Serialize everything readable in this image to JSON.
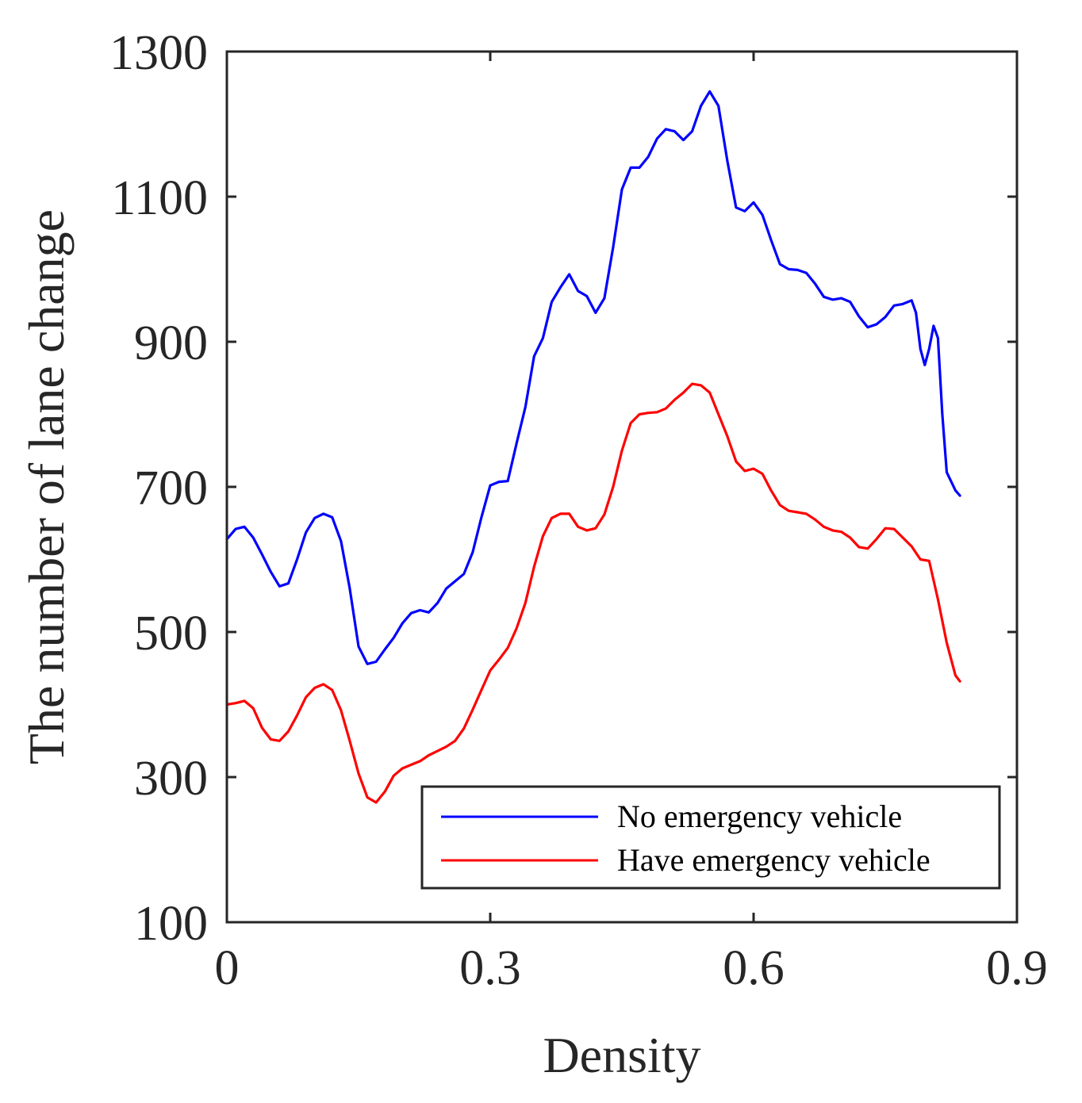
{
  "chart_data": {
    "type": "line",
    "title": "",
    "xlabel": "Density",
    "ylabel": "The number of lane change",
    "xlim": [
      0,
      0.9
    ],
    "ylim": [
      100,
      1300
    ],
    "xticks": [
      0,
      0.3,
      0.6,
      0.9
    ],
    "xtick_labels": [
      "0",
      "0.3",
      "0.6",
      "0.9"
    ],
    "yticks": [
      100,
      300,
      500,
      700,
      900,
      1100,
      1300
    ],
    "ytick_labels": [
      "100",
      "300",
      "500",
      "700",
      "900",
      "1100",
      "1300"
    ],
    "grid": false,
    "legend_position": "bottom-right",
    "series": [
      {
        "name": "No emergency vehicle",
        "color": "#0000ff",
        "points": [
          [
            0.0,
            628
          ],
          [
            0.01,
            642
          ],
          [
            0.02,
            645
          ],
          [
            0.03,
            630
          ],
          [
            0.04,
            607
          ],
          [
            0.05,
            583
          ],
          [
            0.06,
            563
          ],
          [
            0.07,
            567
          ],
          [
            0.08,
            600
          ],
          [
            0.09,
            637
          ],
          [
            0.1,
            657
          ],
          [
            0.11,
            663
          ],
          [
            0.12,
            658
          ],
          [
            0.13,
            625
          ],
          [
            0.14,
            560
          ],
          [
            0.15,
            480
          ],
          [
            0.16,
            456
          ],
          [
            0.17,
            459
          ],
          [
            0.18,
            476
          ],
          [
            0.19,
            492
          ],
          [
            0.2,
            512
          ],
          [
            0.21,
            526
          ],
          [
            0.22,
            530
          ],
          [
            0.23,
            527
          ],
          [
            0.24,
            540
          ],
          [
            0.25,
            560
          ],
          [
            0.26,
            570
          ],
          [
            0.27,
            580
          ],
          [
            0.28,
            610
          ],
          [
            0.29,
            658
          ],
          [
            0.3,
            702
          ],
          [
            0.31,
            707
          ],
          [
            0.32,
            708
          ],
          [
            0.33,
            760
          ],
          [
            0.34,
            810
          ],
          [
            0.35,
            880
          ],
          [
            0.36,
            905
          ],
          [
            0.37,
            955
          ],
          [
            0.38,
            975
          ],
          [
            0.39,
            993
          ],
          [
            0.4,
            970
          ],
          [
            0.41,
            963
          ],
          [
            0.42,
            940
          ],
          [
            0.43,
            960
          ],
          [
            0.44,
            1030
          ],
          [
            0.45,
            1110
          ],
          [
            0.46,
            1140
          ],
          [
            0.47,
            1140
          ],
          [
            0.48,
            1155
          ],
          [
            0.49,
            1180
          ],
          [
            0.5,
            1193
          ],
          [
            0.51,
            1190
          ],
          [
            0.52,
            1178
          ],
          [
            0.53,
            1190
          ],
          [
            0.54,
            1225
          ],
          [
            0.55,
            1245
          ],
          [
            0.56,
            1225
          ],
          [
            0.57,
            1150
          ],
          [
            0.58,
            1085
          ],
          [
            0.59,
            1080
          ],
          [
            0.6,
            1092
          ],
          [
            0.61,
            1075
          ],
          [
            0.62,
            1040
          ],
          [
            0.63,
            1007
          ],
          [
            0.64,
            1000
          ],
          [
            0.65,
            999
          ],
          [
            0.66,
            995
          ],
          [
            0.67,
            980
          ],
          [
            0.68,
            962
          ],
          [
            0.69,
            958
          ],
          [
            0.7,
            960
          ],
          [
            0.71,
            955
          ],
          [
            0.72,
            935
          ],
          [
            0.73,
            920
          ],
          [
            0.74,
            924
          ],
          [
            0.75,
            934
          ],
          [
            0.76,
            950
          ],
          [
            0.77,
            952
          ],
          [
            0.78,
            957
          ],
          [
            0.785,
            940
          ],
          [
            0.79,
            890
          ],
          [
            0.795,
            868
          ],
          [
            0.8,
            890
          ],
          [
            0.805,
            922
          ],
          [
            0.81,
            905
          ],
          [
            0.815,
            800
          ],
          [
            0.82,
            720
          ],
          [
            0.83,
            695
          ],
          [
            0.835,
            688
          ]
        ]
      },
      {
        "name": "Have emergency vehicle",
        "color": "#ff0000",
        "points": [
          [
            0.0,
            400
          ],
          [
            0.01,
            402
          ],
          [
            0.02,
            405
          ],
          [
            0.03,
            395
          ],
          [
            0.04,
            368
          ],
          [
            0.05,
            352
          ],
          [
            0.06,
            350
          ],
          [
            0.07,
            363
          ],
          [
            0.08,
            385
          ],
          [
            0.09,
            410
          ],
          [
            0.1,
            423
          ],
          [
            0.11,
            428
          ],
          [
            0.12,
            420
          ],
          [
            0.13,
            392
          ],
          [
            0.14,
            350
          ],
          [
            0.15,
            305
          ],
          [
            0.16,
            272
          ],
          [
            0.17,
            265
          ],
          [
            0.18,
            280
          ],
          [
            0.19,
            302
          ],
          [
            0.2,
            312
          ],
          [
            0.21,
            317
          ],
          [
            0.22,
            322
          ],
          [
            0.23,
            330
          ],
          [
            0.24,
            336
          ],
          [
            0.25,
            342
          ],
          [
            0.26,
            350
          ],
          [
            0.27,
            367
          ],
          [
            0.28,
            393
          ],
          [
            0.29,
            420
          ],
          [
            0.3,
            447
          ],
          [
            0.31,
            462
          ],
          [
            0.32,
            478
          ],
          [
            0.33,
            505
          ],
          [
            0.34,
            540
          ],
          [
            0.35,
            590
          ],
          [
            0.36,
            632
          ],
          [
            0.37,
            657
          ],
          [
            0.38,
            663
          ],
          [
            0.39,
            663
          ],
          [
            0.4,
            645
          ],
          [
            0.41,
            640
          ],
          [
            0.42,
            643
          ],
          [
            0.43,
            662
          ],
          [
            0.44,
            700
          ],
          [
            0.45,
            750
          ],
          [
            0.46,
            788
          ],
          [
            0.47,
            800
          ],
          [
            0.48,
            802
          ],
          [
            0.49,
            803
          ],
          [
            0.5,
            808
          ],
          [
            0.51,
            820
          ],
          [
            0.52,
            830
          ],
          [
            0.53,
            842
          ],
          [
            0.54,
            840
          ],
          [
            0.55,
            830
          ],
          [
            0.56,
            800
          ],
          [
            0.57,
            770
          ],
          [
            0.58,
            735
          ],
          [
            0.59,
            722
          ],
          [
            0.6,
            725
          ],
          [
            0.61,
            718
          ],
          [
            0.62,
            695
          ],
          [
            0.63,
            675
          ],
          [
            0.64,
            667
          ],
          [
            0.65,
            665
          ],
          [
            0.66,
            663
          ],
          [
            0.67,
            655
          ],
          [
            0.68,
            645
          ],
          [
            0.69,
            640
          ],
          [
            0.7,
            638
          ],
          [
            0.71,
            630
          ],
          [
            0.72,
            617
          ],
          [
            0.73,
            615
          ],
          [
            0.74,
            628
          ],
          [
            0.75,
            643
          ],
          [
            0.76,
            642
          ],
          [
            0.77,
            630
          ],
          [
            0.78,
            618
          ],
          [
            0.79,
            600
          ],
          [
            0.8,
            598
          ],
          [
            0.81,
            545
          ],
          [
            0.82,
            485
          ],
          [
            0.83,
            440
          ],
          [
            0.835,
            432
          ]
        ]
      }
    ]
  }
}
